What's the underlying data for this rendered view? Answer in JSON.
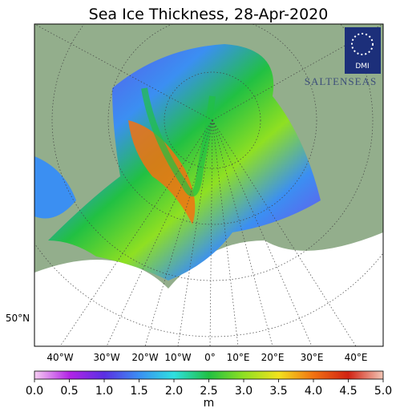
{
  "title": "Sea Ice Thickness, 28-Apr-2020",
  "logo": "DMI",
  "watermark": "SALTENSEAS",
  "lat_label": "50°N",
  "lon_labels": [
    "40°W",
    "30°W",
    "20°W",
    "10°W",
    "0°",
    "10°E",
    "20°E",
    "30°E",
    "40°E"
  ],
  "colorbar": {
    "label": "m",
    "lim": [
      0,
      5
    ],
    "ticks": [
      {
        "value": 0,
        "label": "0.0"
      },
      0.5,
      {
        "value": 1,
        "label": "1.0"
      },
      1.5,
      {
        "value": 2,
        "label": "2.0"
      },
      2.5,
      {
        "value": 3,
        "label": "3.0"
      },
      3.5,
      {
        "value": 4,
        "label": "4.0"
      },
      4.5,
      {
        "value": 5,
        "label": "5.0"
      }
    ],
    "colors": [
      "#f6cdf2",
      "#b324e6",
      "#5b2fe3",
      "#3b8ff2",
      "#2fe0e0",
      "#21c043",
      "#8fe022",
      "#f2e21e",
      "#f27212",
      "#d12212",
      "#f3c6b6"
    ]
  }
}
